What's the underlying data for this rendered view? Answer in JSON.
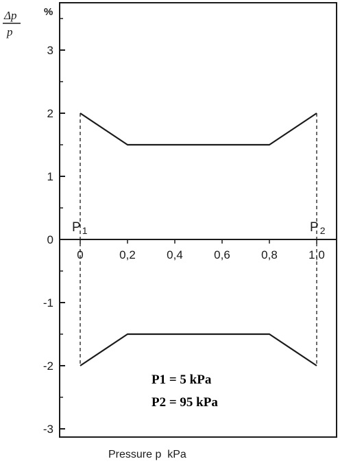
{
  "chart_data": {
    "type": "line",
    "title": "",
    "xlabel": "Pressure p  kPa",
    "ylabel_top": "Δp",
    "ylabel_bottom": "p",
    "ylabel_unit": "%",
    "xlim": [
      0,
      1.0
    ],
    "ylim": [
      -3,
      3.8
    ],
    "x_ticks": [
      0,
      0.2,
      0.4,
      0.6,
      0.8,
      1.0
    ],
    "x_tick_labels": [
      "0",
      "0,2",
      "0,4",
      "0,6",
      "0,8",
      "1,0"
    ],
    "y_ticks": [
      -3,
      -2,
      -1,
      0,
      1,
      2,
      3
    ],
    "y_tick_labels": [
      "-3",
      "-2",
      "-1",
      "0",
      "1",
      "2",
      "3"
    ],
    "series": [
      {
        "x": [
          0,
          0.2,
          0.8,
          1.0
        ],
        "y": [
          2.0,
          1.5,
          1.5,
          2.0
        ]
      },
      {
        "x": [
          0,
          0.2,
          0.8,
          1.0
        ],
        "y": [
          -2.0,
          -1.5,
          -1.5,
          -2.0
        ]
      }
    ],
    "boundary_labels": [
      {
        "x": 0,
        "text": "P1",
        "main": "P",
        "sub": "1"
      },
      {
        "x": 1.0,
        "text": "P2",
        "main": "P",
        "sub": "2"
      }
    ],
    "annotations": [
      "P1 = 5 kPa",
      "P2 = 95 kPa"
    ],
    "grid": false,
    "colors": {
      "line": "#1a1a1a",
      "background": "#ffffff"
    }
  }
}
